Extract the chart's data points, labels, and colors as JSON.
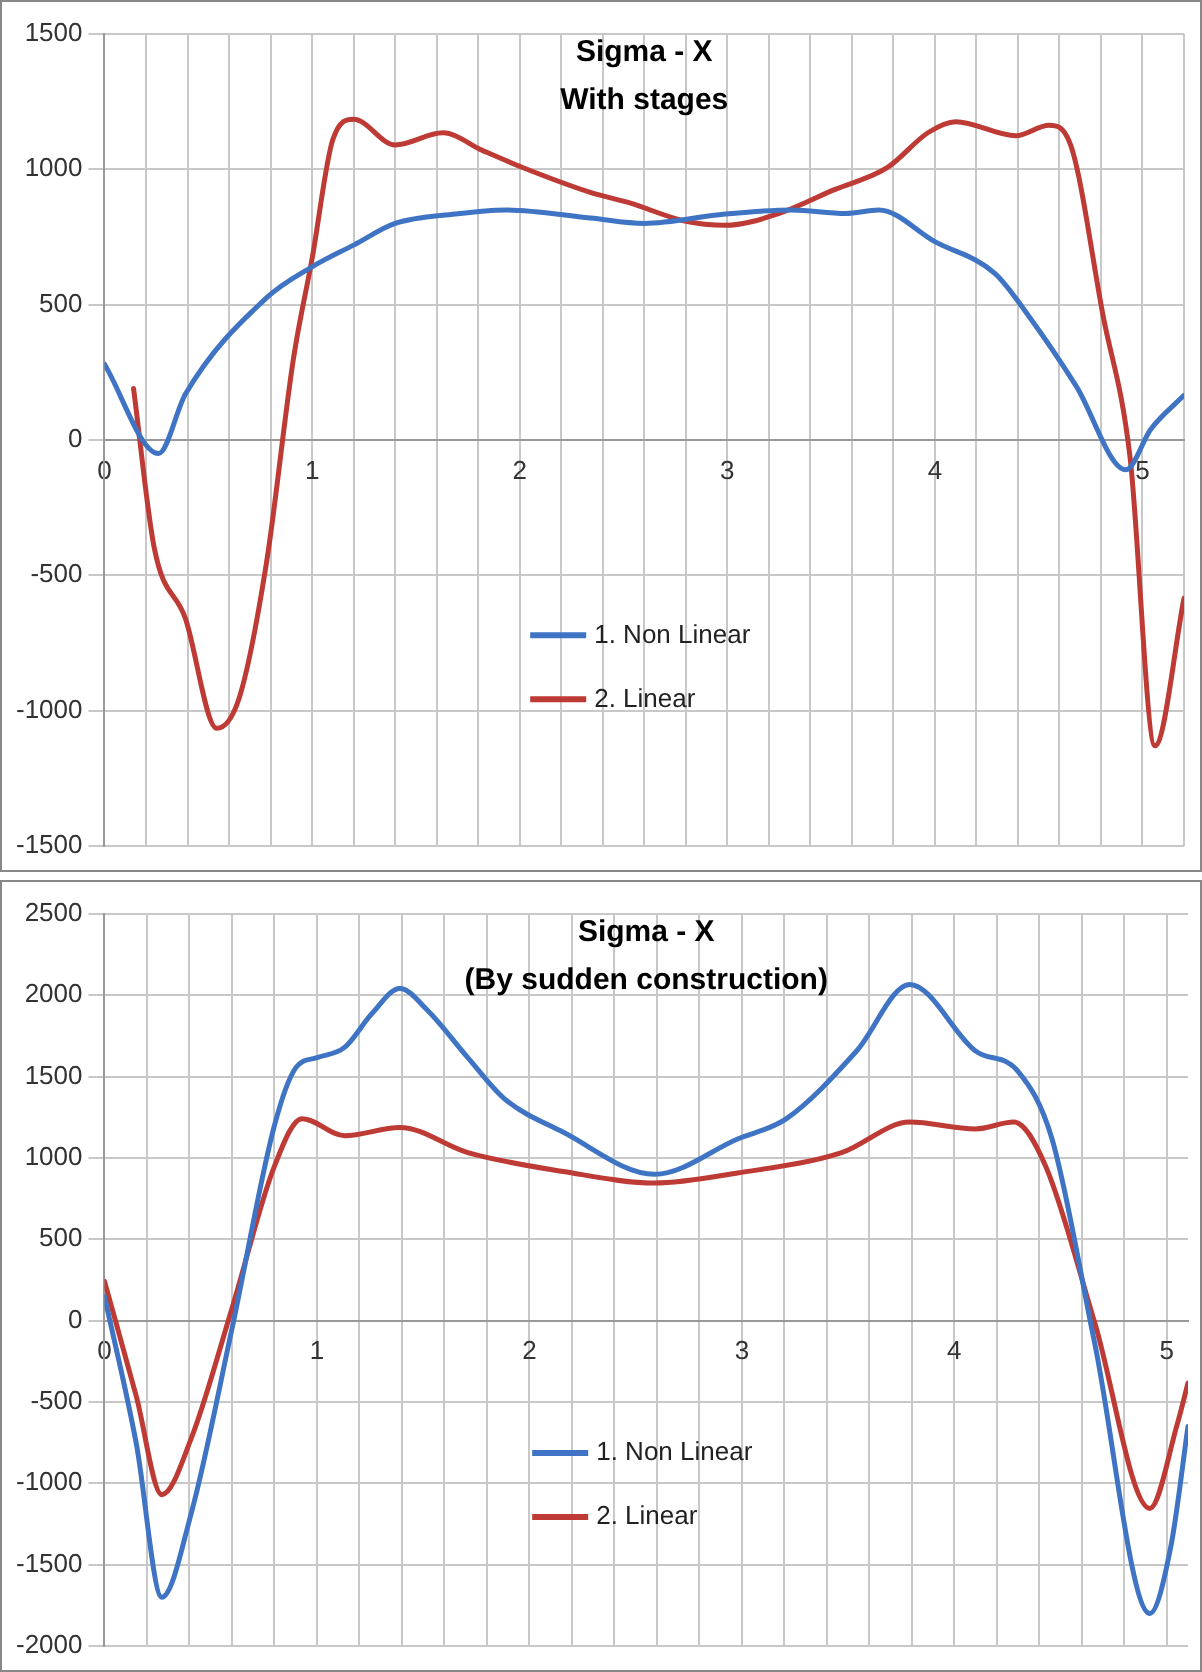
{
  "chart_data": [
    {
      "type": "line",
      "title": "Sigma - X",
      "subtitle": "With stages",
      "xlim": [
        0,
        5.2
      ],
      "xticks": [
        0,
        {
          "value": 0.2,
          "label": null
        },
        {
          "value": 0.4,
          "label": null
        },
        {
          "value": 0.6,
          "label": null
        },
        {
          "value": 0.8,
          "label": null
        },
        1,
        {
          "value": 1.2,
          "label": null
        },
        {
          "value": 1.4,
          "label": null
        },
        {
          "value": 1.6,
          "label": null
        },
        {
          "value": 1.8,
          "label": null
        },
        2,
        {
          "value": 2.2,
          "label": null
        },
        {
          "value": 2.4,
          "label": null
        },
        {
          "value": 2.6,
          "label": null
        },
        {
          "value": 2.8,
          "label": null
        },
        3,
        {
          "value": 3.2,
          "label": null
        },
        {
          "value": 3.4,
          "label": null
        },
        {
          "value": 3.6,
          "label": null
        },
        {
          "value": 3.8,
          "label": null
        },
        4,
        {
          "value": 4.2,
          "label": null
        },
        {
          "value": 4.4,
          "label": null
        },
        {
          "value": 4.6,
          "label": null
        },
        {
          "value": 4.8,
          "label": null
        },
        5,
        {
          "value": 5.2,
          "label": null
        }
      ],
      "ylim": [
        -1500,
        1500
      ],
      "yticks": [
        -1500,
        -1000,
        -500,
        0,
        500,
        1000,
        1500
      ],
      "grid": true,
      "legend": "bottom",
      "marker": "none",
      "line_style": "solid",
      "series": [
        {
          "name": "1. Non Linear",
          "color": "#3f74c4",
          "x": [
            0,
            0.26,
            0.39,
            0.78,
            1.0,
            1.2,
            1.4,
            1.69,
            1.93,
            2.34,
            2.6,
            2.99,
            3.31,
            3.57,
            3.73,
            4.0,
            4.29,
            4.45,
            4.68,
            4.92,
            5.04,
            5.2
          ],
          "values": [
            280,
            -50,
            170,
            525,
            640,
            720,
            800,
            835,
            850,
            820,
            800,
            835,
            850,
            837,
            850,
            733,
            615,
            460,
            200,
            -110,
            40,
            165
          ]
        },
        {
          "name": "2. Linear",
          "color": "#be3a35",
          "x": [
            0.14,
            0.24,
            0.39,
            0.54,
            0.65,
            0.78,
            0.91,
            1.0,
            1.1,
            1.2,
            1.4,
            1.63,
            1.82,
            2.02,
            2.34,
            2.53,
            2.79,
            2.99,
            3.25,
            3.51,
            3.77,
            3.97,
            4.1,
            4.39,
            4.55,
            4.65,
            4.81,
            4.94,
            5.06,
            5.2
          ],
          "values": [
            190,
            -400,
            -660,
            -1065,
            -950,
            -455,
            300,
            670,
            1110,
            1185,
            1090,
            1135,
            1070,
            1005,
            915,
            876,
            810,
            793,
            837,
            923,
            1006,
            1137,
            1176,
            1124,
            1163,
            1098,
            460,
            -63,
            -1130,
            -585
          ]
        }
      ]
    },
    {
      "type": "line",
      "title": "Sigma - X",
      "subtitle": "(By sudden construction)",
      "xlim": [
        0,
        5.1
      ],
      "xticks": [
        0,
        {
          "value": 0.2,
          "label": null
        },
        {
          "value": 0.4,
          "label": null
        },
        {
          "value": 0.6,
          "label": null
        },
        {
          "value": 0.8,
          "label": null
        },
        1,
        {
          "value": 1.2,
          "label": null
        },
        {
          "value": 1.4,
          "label": null
        },
        {
          "value": 1.6,
          "label": null
        },
        {
          "value": 1.8,
          "label": null
        },
        2,
        {
          "value": 2.2,
          "label": null
        },
        {
          "value": 2.4,
          "label": null
        },
        {
          "value": 2.6,
          "label": null
        },
        {
          "value": 2.8,
          "label": null
        },
        3,
        {
          "value": 3.2,
          "label": null
        },
        {
          "value": 3.4,
          "label": null
        },
        {
          "value": 3.6,
          "label": null
        },
        {
          "value": 3.8,
          "label": null
        },
        4,
        {
          "value": 4.2,
          "label": null
        },
        {
          "value": 4.4,
          "label": null
        },
        {
          "value": 4.6,
          "label": null
        },
        {
          "value": 4.8,
          "label": null
        },
        5
      ],
      "ylim": [
        -2000,
        2500
      ],
      "yticks": [
        -2000,
        -1500,
        -1000,
        -500,
        0,
        500,
        1000,
        1500,
        2000,
        2500
      ],
      "grid": true,
      "legend": "bottom",
      "marker": "none",
      "line_style": "solid",
      "series": [
        {
          "name": "1. Non Linear",
          "color": "#3f74c4",
          "x": [
            0,
            0.15,
            0.27,
            0.41,
            0.6,
            0.8,
            0.9,
            1.0,
            1.13,
            1.26,
            1.39,
            1.52,
            1.71,
            1.88,
            2.16,
            2.59,
            2.98,
            3.21,
            3.54,
            3.79,
            4.1,
            4.3,
            4.46,
            4.66,
            4.92,
            5.02,
            5.1
          ],
          "values": [
            150,
            -758,
            -1700,
            -1175,
            -50,
            1200,
            1554,
            1617,
            1680,
            1890,
            2042,
            1908,
            1617,
            1367,
            1158,
            900,
            1117,
            1242,
            1658,
            2067,
            1658,
            1533,
            1117,
            -133,
            -1800,
            -1383,
            -650
          ]
        },
        {
          "name": "2. Linear",
          "color": "#be3a35",
          "x": [
            0,
            0.15,
            0.27,
            0.41,
            0.6,
            0.8,
            0.93,
            1.13,
            1.39,
            1.71,
            2.16,
            2.59,
            2.98,
            3.47,
            3.79,
            4.1,
            4.28,
            4.43,
            4.66,
            4.92,
            5.05,
            5.1
          ],
          "values": [
            242,
            -467,
            -1070,
            -717,
            75,
            950,
            1242,
            1137,
            1188,
            1033,
            917,
            846,
            908,
            1033,
            1221,
            1179,
            1221,
            950,
            -8,
            -1154,
            -633,
            -383
          ]
        }
      ]
    }
  ]
}
